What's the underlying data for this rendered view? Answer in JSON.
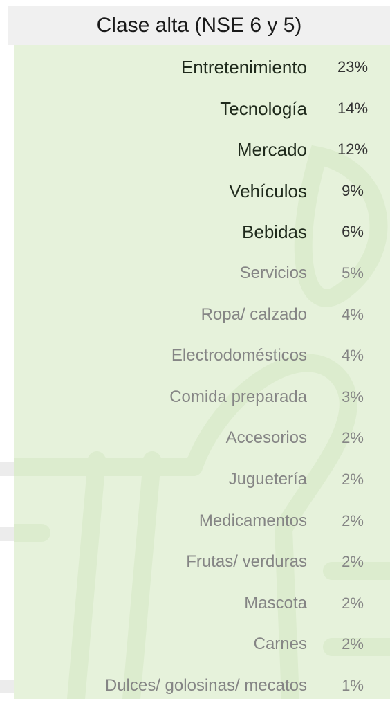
{
  "header": {
    "title": "Clase alta (NSE 6 y 5)"
  },
  "table": {
    "rows": [
      {
        "label": "Entretenimiento",
        "value": "23%",
        "bold": true
      },
      {
        "label": "Tecnología",
        "value": "14%",
        "bold": true
      },
      {
        "label": "Mercado",
        "value": "12%",
        "bold": true
      },
      {
        "label": "Vehículos",
        "value": "9%",
        "bold": true
      },
      {
        "label": "Bebidas",
        "value": "6%",
        "bold": true
      },
      {
        "label": "Servicios",
        "value": "5%",
        "bold": false
      },
      {
        "label": "Ropa/ calzado",
        "value": "4%",
        "bold": false
      },
      {
        "label": "Electrodomésticos",
        "value": "4%",
        "bold": false
      },
      {
        "label": "Comida preparada",
        "value": "3%",
        "bold": false
      },
      {
        "label": "Accesorios",
        "value": "2%",
        "bold": false
      },
      {
        "label": "Juguetería",
        "value": "2%",
        "bold": false
      },
      {
        "label": "Medicamentos",
        "value": "2%",
        "bold": false
      },
      {
        "label": "Frutas/ verduras",
        "value": "2%",
        "bold": false
      },
      {
        "label": "Mascota",
        "value": "2%",
        "bold": false
      },
      {
        "label": "Carnes",
        "value": "2%",
        "bold": false
      },
      {
        "label": "Dulces/ golosinas/ mecatos",
        "value": "1%",
        "bold": false
      }
    ]
  }
}
